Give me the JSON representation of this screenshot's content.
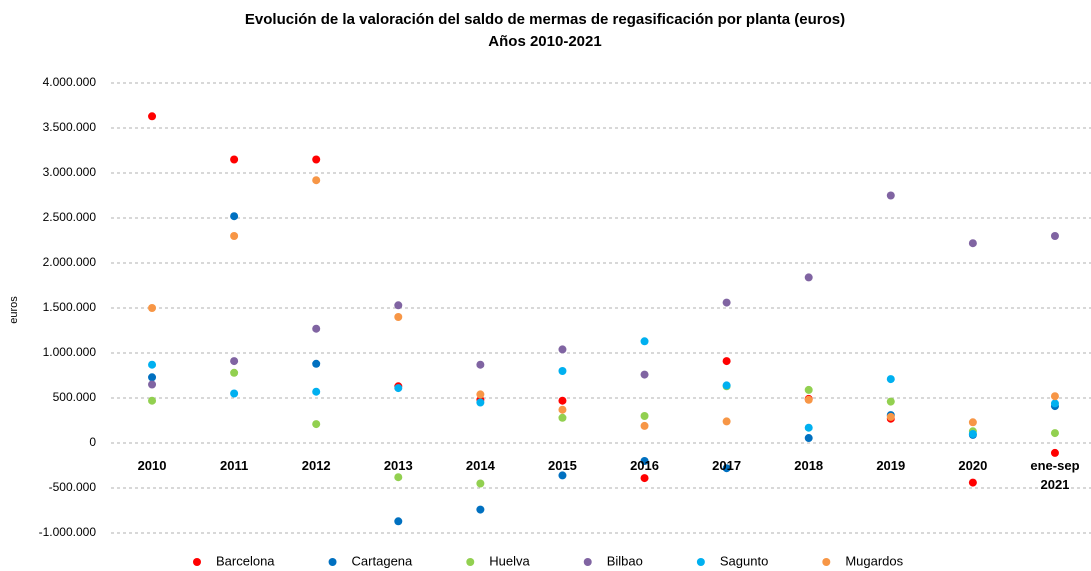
{
  "chart_data": {
    "type": "scatter",
    "title": "Evolución de la valoración del saldo de mermas de regasificación por planta (euros)",
    "subtitle": "Años 2010-2021",
    "y_label": "euros",
    "categories": [
      "2010",
      "2011",
      "2012",
      "2013",
      "2014",
      "2015",
      "2016",
      "2017",
      "2018",
      "2019",
      "2020",
      "ene-sep 2021"
    ],
    "ylim": [
      -1000000,
      4000000
    ],
    "yticks": [
      {
        "value": -1000000,
        "label": "-1.000.000"
      },
      {
        "value": -500000,
        "label": "-500.000"
      },
      0,
      {
        "value": 500000,
        "label": "500.000"
      },
      {
        "value": 1000000,
        "label": "1.000.000"
      },
      {
        "value": 1500000,
        "label": "1.500.000"
      },
      {
        "value": 2000000,
        "label": "2.000.000"
      },
      {
        "value": 2500000,
        "label": "2.500.000"
      },
      {
        "value": 3000000,
        "label": "3.000.000"
      },
      {
        "value": 3500000,
        "label": "3.500.000"
      },
      {
        "value": 4000000,
        "label": "4.000.000"
      }
    ],
    "grid": true,
    "legend": "bottom",
    "series": [
      {
        "name": "Barcelona",
        "color": "#ff0000",
        "values": [
          3630000,
          3150000,
          3150000,
          630000,
          480000,
          470000,
          -390000,
          910000,
          490000,
          270000,
          -440000,
          -110000
        ]
      },
      {
        "name": "Cartagena",
        "color": "#0070c0",
        "values": [
          730000,
          2520000,
          880000,
          -870000,
          -740000,
          -360000,
          -200000,
          -280000,
          55000,
          310000,
          90000,
          410000
        ]
      },
      {
        "name": "Huelva",
        "color": "#92d050",
        "values": [
          470000,
          780000,
          210000,
          -380000,
          -450000,
          280000,
          300000,
          630000,
          590000,
          460000,
          130000,
          110000
        ]
      },
      {
        "name": "Bilbao",
        "color": "#8064a2",
        "values": [
          650000,
          910000,
          1270000,
          1530000,
          870000,
          1040000,
          760000,
          1560000,
          1840000,
          2750000,
          2220000,
          2300000
        ]
      },
      {
        "name": "Sagunto",
        "color": "#00b0f0",
        "values": [
          870000,
          550000,
          570000,
          610000,
          450000,
          800000,
          1130000,
          640000,
          170000,
          710000,
          100000,
          440000
        ]
      },
      {
        "name": "Mugardos",
        "color": "#f79646",
        "values": [
          1500000,
          2300000,
          2920000,
          1400000,
          540000,
          370000,
          190000,
          240000,
          480000,
          290000,
          230000,
          520000
        ]
      }
    ]
  }
}
